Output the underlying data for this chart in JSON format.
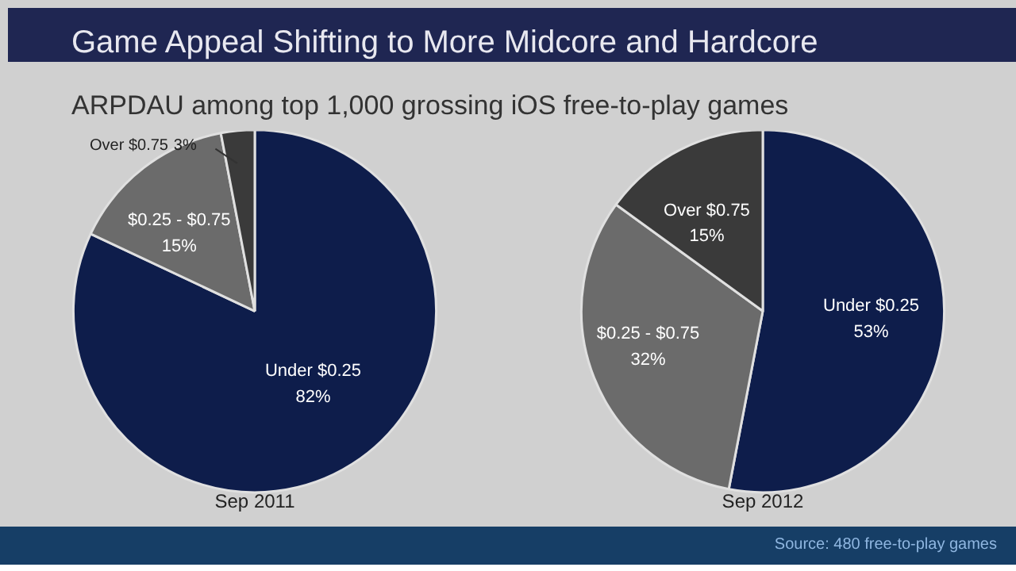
{
  "chart_data": [
    {
      "type": "pie",
      "title": "Game Appeal Shifting to More Midcore and Hardcore",
      "subtitle": "ARPDAU among top 1,000 grossing iOS free-to-play games",
      "xlabel": "Sep 2011",
      "categories": [
        "Under $0.25",
        "$0.25 - $0.75",
        "Over $0.75"
      ],
      "values": [
        82,
        15,
        3
      ],
      "value_labels": [
        "82%",
        "15%",
        "3%"
      ],
      "colors": [
        "#0e1d4b",
        "#6b6b6b",
        "#3a3a3a"
      ]
    },
    {
      "type": "pie",
      "xlabel": "Sep 2012",
      "categories": [
        "Under $0.25",
        "$0.25 - $0.75",
        "Over $0.75"
      ],
      "values": [
        53,
        32,
        15
      ],
      "value_labels": [
        "53%",
        "32%",
        "15%"
      ],
      "colors": [
        "#0e1d4b",
        "#6b6b6b",
        "#3a3a3a"
      ],
      "annotations": [
        "Source: 480 free-to-play games"
      ]
    }
  ]
}
